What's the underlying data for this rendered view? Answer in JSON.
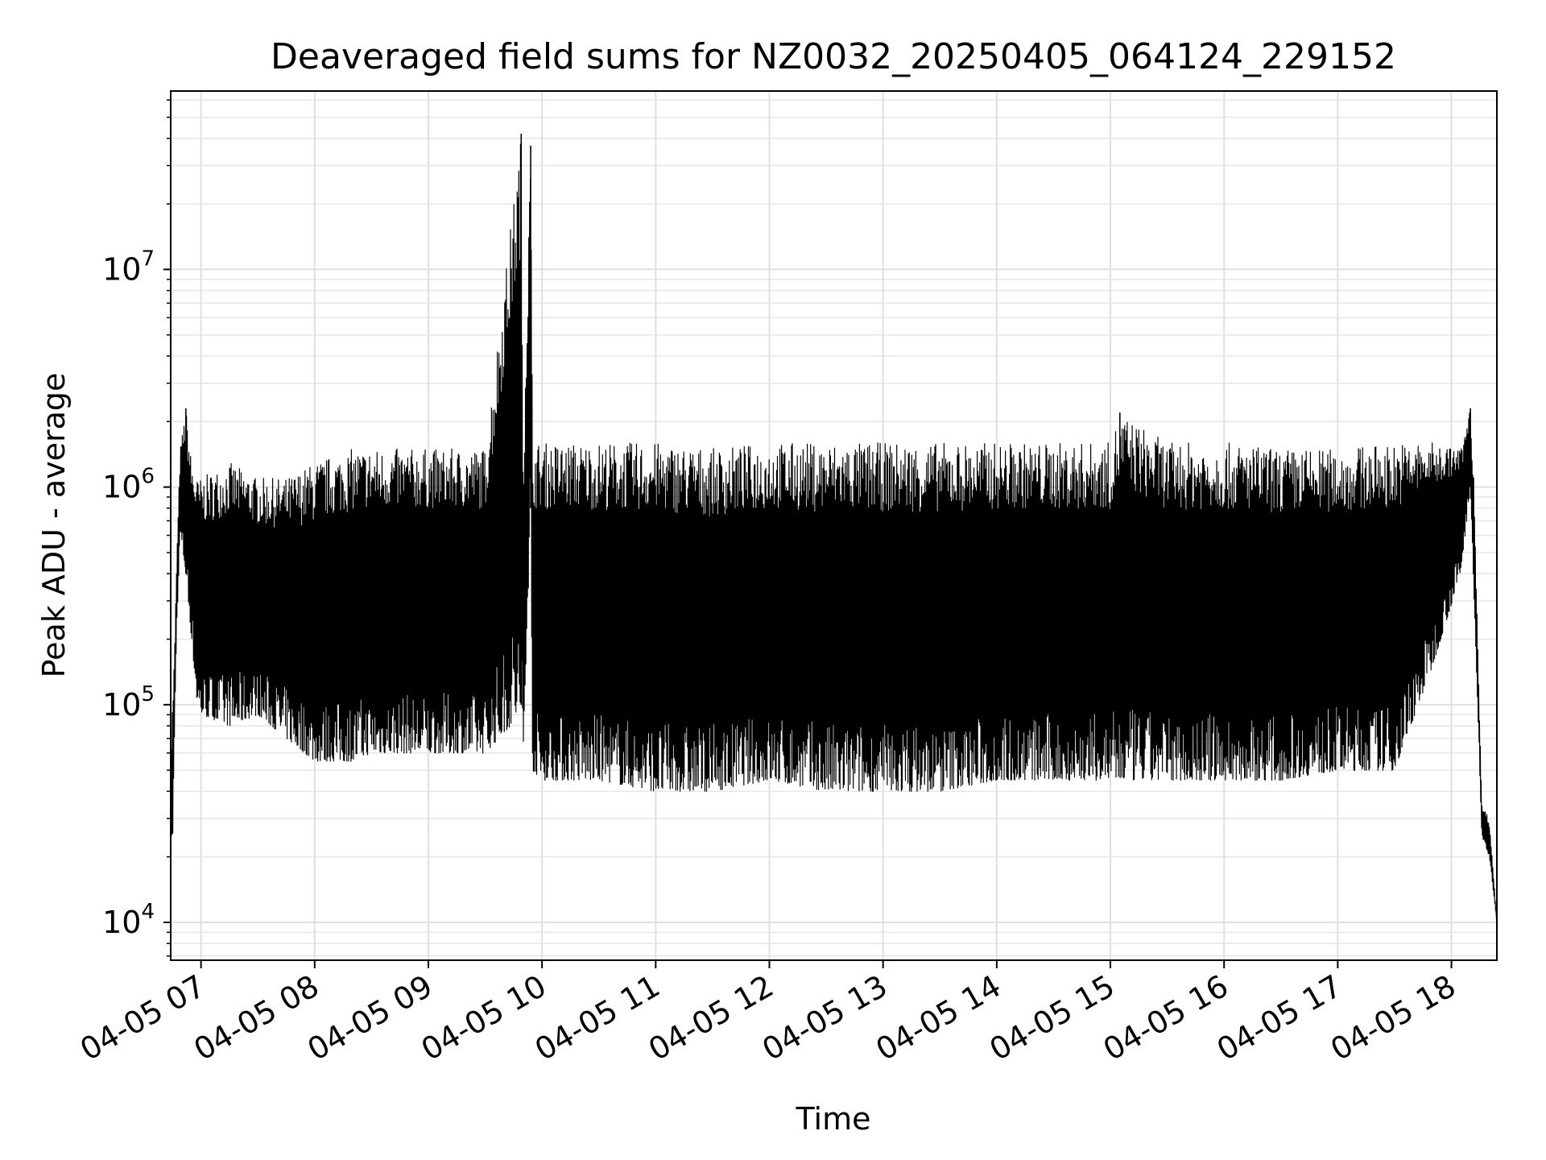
{
  "chart_data": {
    "type": "line",
    "title": "Deaveraged field sums for NZ0032_20250405_064124_229152",
    "xlabel": "Time",
    "ylabel": "Peak ADU - average",
    "yscale": "log",
    "xlim": [
      "2025-04-05 06:44",
      "2025-04-05 18:24"
    ],
    "ylim": [
      6700,
      66000000
    ],
    "grid": true,
    "line_color": "#000000",
    "x_tick_labels": [
      "04-05 07",
      "04-05 08",
      "04-05 09",
      "04-05 10",
      "04-05 11",
      "04-05 12",
      "04-05 13",
      "04-05 14",
      "04-05 15",
      "04-05 16",
      "04-05 17",
      "04-05 18"
    ],
    "y_ticks": [
      {
        "value": 10000,
        "base": "10",
        "exp": "4"
      },
      {
        "value": 100000,
        "base": "10",
        "exp": "5"
      },
      {
        "value": 1000000,
        "base": "10",
        "exp": "6"
      },
      {
        "value": 10000000,
        "base": "10",
        "exp": "7"
      }
    ],
    "series": [
      {
        "x": [
          "2025-04-05 06:44",
          "2025-04-05 06:45",
          "2025-04-05 06:46",
          "2025-04-05 06:47",
          "2025-04-05 06:49",
          "2025-04-05 06:52",
          "2025-04-05 06:55",
          "2025-04-05 06:58",
          "2025-04-05 07:00",
          "2025-04-05 07:15",
          "2025-04-05 07:30",
          "2025-04-05 07:45",
          "2025-04-05 08:00",
          "2025-04-05 08:10",
          "2025-04-05 08:20",
          "2025-04-05 08:30",
          "2025-04-05 08:45",
          "2025-04-05 09:00",
          "2025-04-05 09:15",
          "2025-04-05 09:30",
          "2025-04-05 09:49",
          "2025-04-05 09:50",
          "2025-04-05 09:54",
          "2025-04-05 09:55",
          "2025-04-05 10:00",
          "2025-04-05 10:30",
          "2025-04-05 11:00",
          "2025-04-05 11:30",
          "2025-04-05 12:00",
          "2025-04-05 12:30",
          "2025-04-05 13:00",
          "2025-04-05 13:30",
          "2025-04-05 14:00",
          "2025-04-05 14:30",
          "2025-04-05 15:00",
          "2025-04-05 15:05",
          "2025-04-05 15:30",
          "2025-04-05 16:00",
          "2025-04-05 16:30",
          "2025-04-05 17:00",
          "2025-04-05 17:30",
          "2025-04-05 17:50",
          "2025-04-05 18:05",
          "2025-04-05 18:10",
          "2025-04-05 18:12",
          "2025-04-05 18:16",
          "2025-04-05 18:20",
          "2025-04-05 18:24"
        ],
        "upper": [
          50000,
          110000,
          170000,
          420000,
          1500000,
          2300000,
          1300000,
          1100000,
          1100000,
          1300000,
          1100000,
          1100000,
          1300000,
          1400000,
          1500000,
          1500000,
          1500000,
          1500000,
          1500000,
          1500000,
          42000000,
          1500000,
          37000000,
          1600000,
          1600000,
          1600000,
          1600000,
          1500000,
          1600000,
          1600000,
          1600000,
          1600000,
          1600000,
          1600000,
          1600000,
          2200000,
          1600000,
          1600000,
          1500000,
          1500000,
          1600000,
          1600000,
          1500000,
          2300000,
          1000000,
          35000,
          30000,
          10000
        ],
        "lower": [
          35000,
          21000,
          70000,
          200000,
          600000,
          400000,
          200000,
          100000,
          90000,
          80000,
          90000,
          70000,
          55000,
          55000,
          55000,
          60000,
          60000,
          60000,
          60000,
          60000,
          90000,
          50000,
          800000,
          50000,
          45000,
          45000,
          40000,
          40000,
          45000,
          40000,
          40000,
          40000,
          45000,
          45000,
          45000,
          45000,
          45000,
          45000,
          45000,
          50000,
          50000,
          150000,
          400000,
          1000000,
          300000,
          25000,
          20000,
          10000
        ]
      }
    ]
  }
}
